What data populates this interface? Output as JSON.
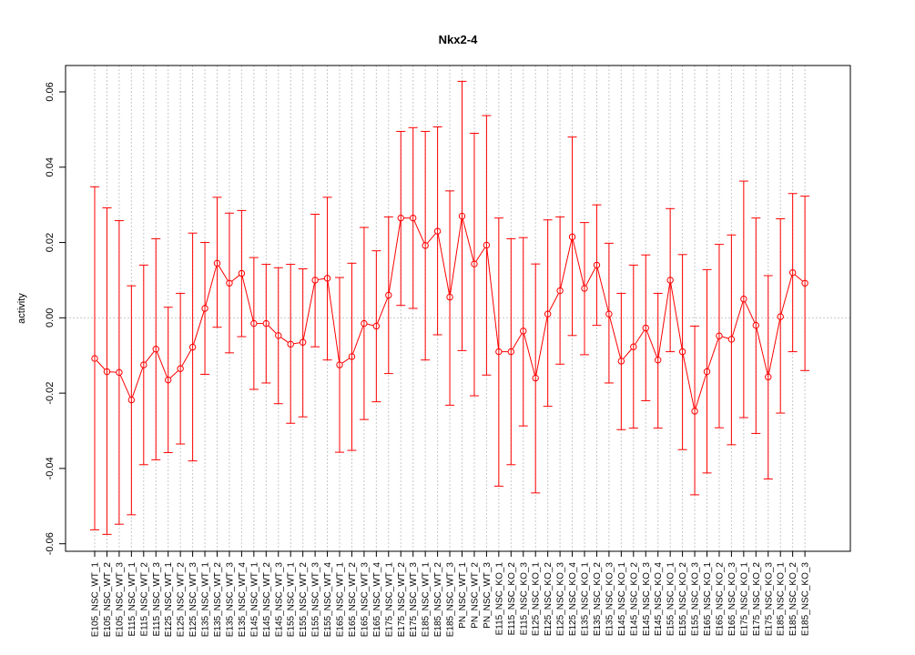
{
  "chart_data": {
    "type": "line",
    "title": "Nkx2-4",
    "xlabel": "",
    "ylabel": "activity",
    "ylim": [
      -0.062,
      0.067
    ],
    "yticks": [
      -0.06,
      -0.04,
      -0.02,
      0.0,
      0.02,
      0.04,
      0.06
    ],
    "ytick_labels": [
      "-0.06",
      "-0.04",
      "-0.02",
      "0.00",
      "0.02",
      "0.04",
      "0.06"
    ],
    "grid": "vertical dotted at each category; horizontal dotted at 0",
    "series_color": "#ff0000",
    "grid_color": "#c8c8c8",
    "categories": [
      "E105_NSC_WT_1",
      "E105_NSC_WT_2",
      "E105_NSC_WT_3",
      "E115_NSC_WT_1",
      "E115_NSC_WT_2",
      "E115_NSC_WT_3",
      "E125_NSC_WT_1",
      "E125_NSC_WT_2",
      "E125_NSC_WT_3",
      "E135_NSC_WT_1",
      "E135_NSC_WT_2",
      "E135_NSC_WT_3",
      "E135_NSC_WT_4",
      "E145_NSC_WT_1",
      "E145_NSC_WT_2",
      "E145_NSC_WT_3",
      "E155_NSC_WT_1",
      "E155_NSC_WT_2",
      "E155_NSC_WT_3",
      "E155_NSC_WT_4",
      "E165_NSC_WT_1",
      "E165_NSC_WT_2",
      "E165_NSC_WT_3",
      "E165_NSC_WT_4",
      "E175_NSC_WT_1",
      "E175_NSC_WT_2",
      "E175_NSC_WT_3",
      "E185_NSC_WT_1",
      "E185_NSC_WT_2",
      "E185_NSC_WT_3",
      "PN_NSC_WT_1",
      "PN_NSC_WT_2",
      "PN_NSC_WT_3",
      "E115_NSC_KO_1",
      "E115_NSC_KO_2",
      "E115_NSC_KO_3",
      "E125_NSC_KO_1",
      "E125_NSC_KO_2",
      "E125_NSC_KO_3",
      "E125_NSC_KO_4",
      "E135_NSC_KO_1",
      "E135_NSC_KO_2",
      "E135_NSC_KO_3",
      "E145_NSC_KO_1",
      "E145_NSC_KO_2",
      "E145_NSC_KO_3",
      "E145_NSC_KO_4",
      "E155_NSC_KO_1",
      "E155_NSC_KO_2",
      "E155_NSC_KO_3",
      "E165_NSC_KO_1",
      "E165_NSC_KO_2",
      "E165_NSC_KO_3",
      "E175_NSC_KO_1",
      "E175_NSC_KO_2",
      "E175_NSC_KO_3",
      "E185_NSC_KO_1",
      "E185_NSC_KO_2",
      "E185_NSC_KO_3"
    ],
    "values": [
      -0.0108,
      -0.0143,
      -0.0145,
      -0.0218,
      -0.0125,
      -0.0083,
      -0.0165,
      -0.0135,
      -0.0078,
      0.0025,
      0.0145,
      0.0092,
      0.0118,
      -0.0015,
      -0.0015,
      -0.0047,
      -0.007,
      -0.0065,
      0.01,
      0.0105,
      -0.0125,
      -0.0103,
      -0.0015,
      -0.0022,
      0.006,
      0.0265,
      0.0265,
      0.0192,
      0.023,
      0.0055,
      0.027,
      0.0143,
      0.0193,
      -0.009,
      -0.009,
      -0.0035,
      -0.016,
      0.001,
      0.0072,
      0.0215,
      0.0078,
      0.014,
      0.001,
      -0.0115,
      -0.0077,
      -0.0027,
      -0.0112,
      0.01,
      -0.009,
      -0.0248,
      -0.0143,
      -0.0048,
      -0.0057,
      0.005,
      -0.002,
      -0.0157,
      0.0003,
      0.012,
      0.0092
    ],
    "upper": [
      0.0348,
      0.0292,
      0.0258,
      0.0085,
      0.014,
      0.021,
      0.0028,
      0.0065,
      0.0225,
      0.02,
      0.032,
      0.0278,
      0.0285,
      0.016,
      0.0142,
      0.0133,
      0.0142,
      0.013,
      0.0275,
      0.032,
      0.0107,
      0.0145,
      0.024,
      0.0178,
      0.0268,
      0.0495,
      0.0505,
      0.0495,
      0.0507,
      0.0337,
      0.0628,
      0.049,
      0.0537,
      0.0265,
      0.021,
      0.0213,
      0.0143,
      0.026,
      0.0268,
      0.048,
      0.0253,
      0.03,
      0.0198,
      0.0065,
      0.014,
      0.0167,
      0.0065,
      0.029,
      0.0168,
      -0.0022,
      0.0128,
      0.0195,
      0.022,
      0.0363,
      0.0265,
      0.0112,
      0.0263,
      0.033,
      0.0323
    ],
    "lower": [
      -0.0563,
      -0.0575,
      -0.0548,
      -0.0523,
      -0.039,
      -0.0377,
      -0.0358,
      -0.0335,
      -0.038,
      -0.015,
      -0.0025,
      -0.0093,
      -0.005,
      -0.019,
      -0.0173,
      -0.0228,
      -0.028,
      -0.0263,
      -0.0077,
      -0.0112,
      -0.0357,
      -0.0352,
      -0.027,
      -0.0223,
      -0.0148,
      0.0033,
      0.0025,
      -0.0112,
      -0.0045,
      -0.0232,
      -0.0087,
      -0.0207,
      -0.0152,
      -0.0447,
      -0.039,
      -0.0287,
      -0.0465,
      -0.0235,
      -0.0123,
      -0.0047,
      -0.0098,
      -0.002,
      -0.0173,
      -0.0297,
      -0.0293,
      -0.022,
      -0.0293,
      -0.009,
      -0.035,
      -0.047,
      -0.0412,
      -0.0292,
      -0.0337,
      -0.0265,
      -0.0307,
      -0.0428,
      -0.0253,
      -0.009,
      -0.014
    ]
  }
}
